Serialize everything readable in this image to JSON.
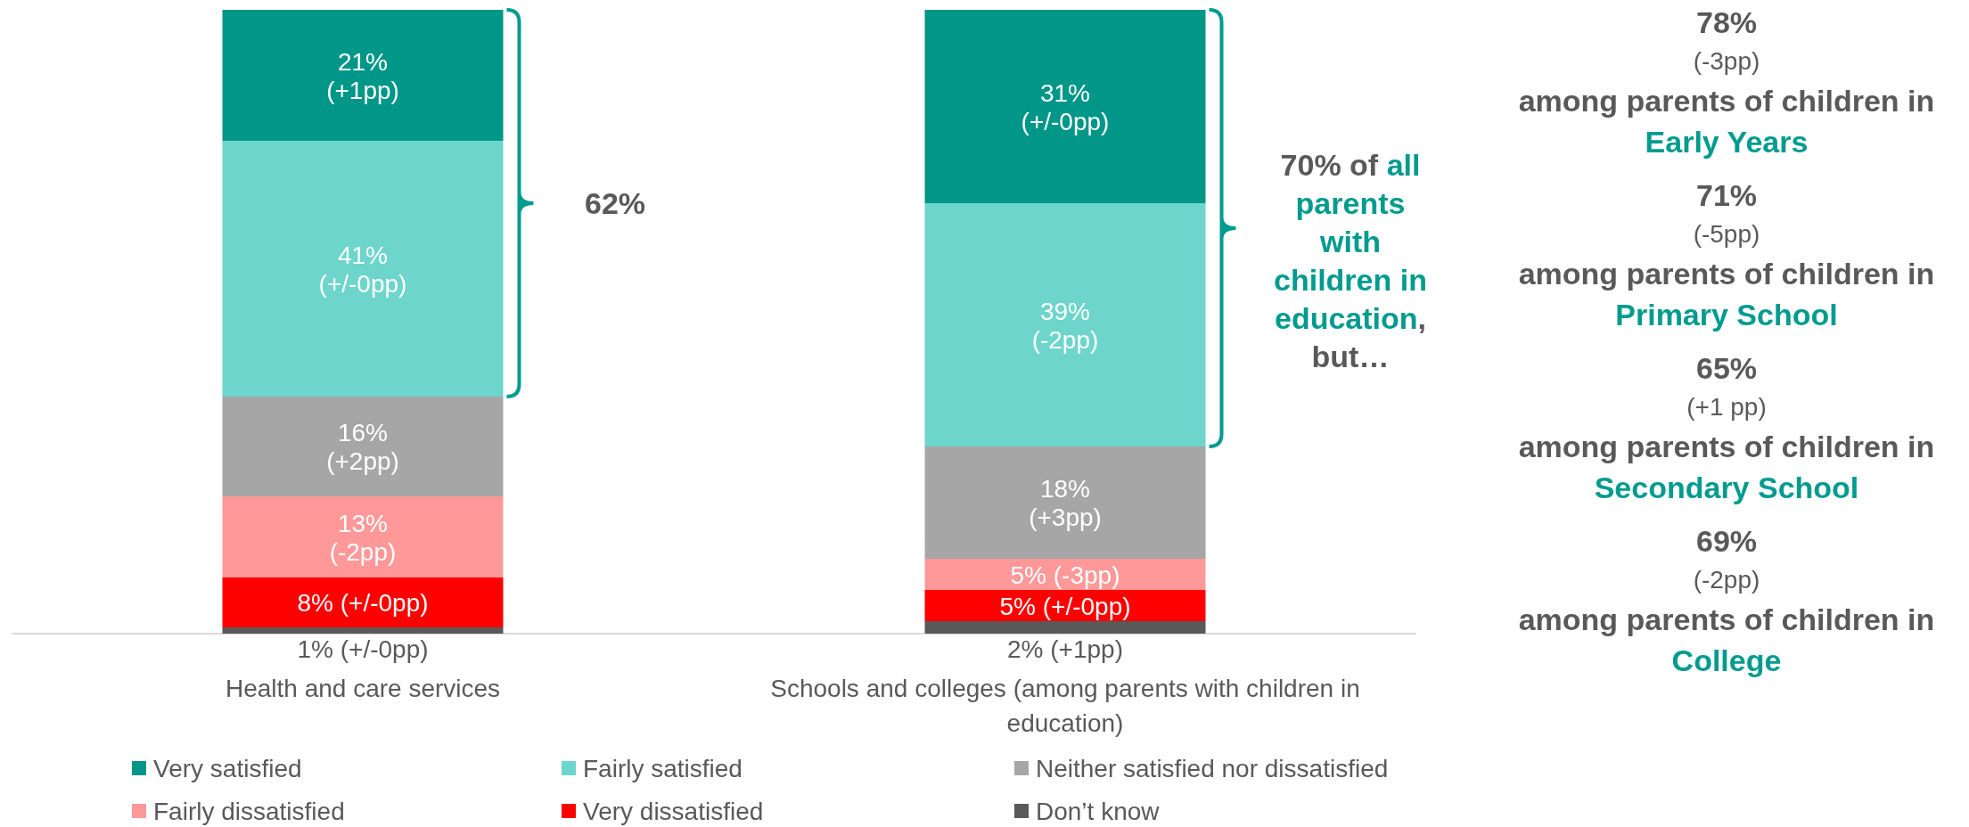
{
  "chart_data": {
    "type": "bar",
    "stacked": true,
    "categories": [
      "Health and care services",
      "Schools and colleges (among parents with children in education)"
    ],
    "series": [
      {
        "name": "Don’t know",
        "color": "#595959",
        "values": [
          1,
          2
        ],
        "value_labels": [
          "1% (+/-0pp)",
          "2% (+1pp)"
        ]
      },
      {
        "name": "Very dissatisfied",
        "color": "#ff0000",
        "values": [
          8,
          5
        ],
        "value_labels": [
          "8% (+/-0pp)",
          "5% (+/-0pp)"
        ]
      },
      {
        "name": "Fairly dissatisfied",
        "color": "#ff9999",
        "values": [
          13,
          5
        ],
        "value_labels": [
          "13%\n(-2pp)",
          "5% (-3pp)"
        ]
      },
      {
        "name": "Neither satisfied nor dissatisfied",
        "color": "#a6a6a6",
        "values": [
          16,
          18
        ],
        "value_labels": [
          "16%\n(+2pp)",
          "18%\n(+3pp)"
        ]
      },
      {
        "name": "Fairly satisfied",
        "color": "#6dd5cc",
        "values": [
          41,
          39
        ],
        "value_labels": [
          "41%\n(+/-0pp)",
          "39%\n(-2pp)"
        ]
      },
      {
        "name": "Very satisfied",
        "color": "#009688",
        "values": [
          21,
          31
        ],
        "value_labels": [
          "21%\n(+1pp)",
          "31%\n(+/-0pp)"
        ]
      }
    ],
    "ylim": [
      0,
      100
    ],
    "tick_labels": "x",
    "legend": "bottom",
    "annotations": [
      "62%",
      "70% of ",
      "all parents with children in education",
      ", but…",
      "78%",
      "(-3pp)",
      "among parents of children in",
      "Early Years",
      "71%",
      "(-5pp)",
      "among parents of children in",
      "Primary School",
      "65%",
      "(+1 pp)",
      "among parents of children in",
      "Secondary School",
      "69%",
      "(-2pp)",
      "among parents of children in",
      "College"
    ]
  }
}
